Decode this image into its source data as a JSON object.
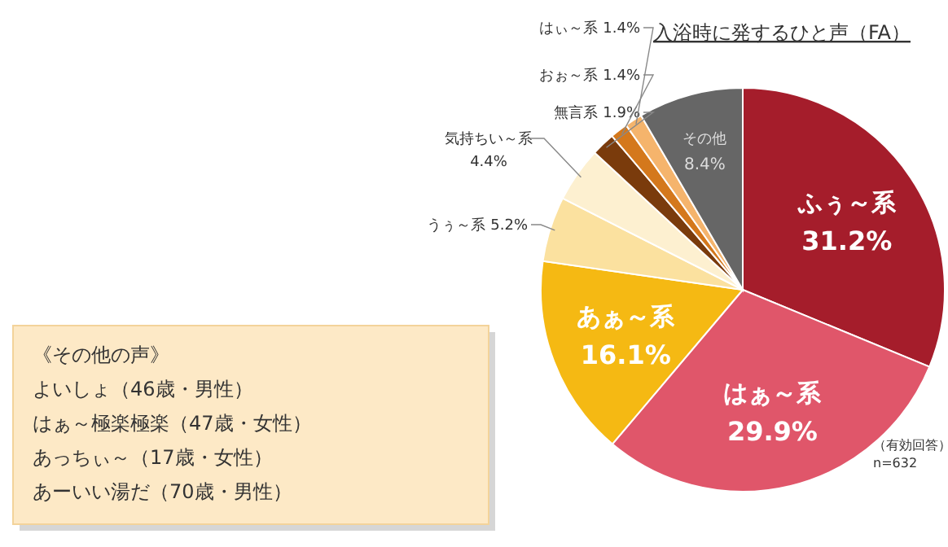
{
  "chart_data": {
    "type": "pie",
    "title": "入浴時に発するひと声（FA）",
    "categories": [
      "ふぅ～系",
      "はぁ～系",
      "あぁ～系",
      "うぅ～系",
      "気持ちい～系",
      "無言系",
      "おぉ～系",
      "はぃ～系",
      "その他"
    ],
    "values": [
      31.2,
      29.9,
      16.1,
      5.2,
      4.4,
      1.9,
      1.4,
      1.4,
      8.4
    ],
    "colors": [
      "#a51d2b",
      "#e0566a",
      "#f5b913",
      "#fbe19f",
      "#fdf0d0",
      "#7a3b0c",
      "#d4781c",
      "#f5b46c",
      "#666666"
    ],
    "value_labels": [
      "31.2%",
      "29.9%",
      "16.1%",
      "5.2%",
      "4.4%",
      "1.9%",
      "1.4%",
      "1.4%",
      "8.4%"
    ],
    "annotations": [
      "（有効回答）\nn=632",
      "《その他の声》",
      "よいしょ（46歳・男性）",
      "はぁ～極楽極楽（47歳・女性）",
      "あっちぃ～（17歳・女性）",
      "あーいい湯だ（70歳・男性）"
    ]
  }
}
